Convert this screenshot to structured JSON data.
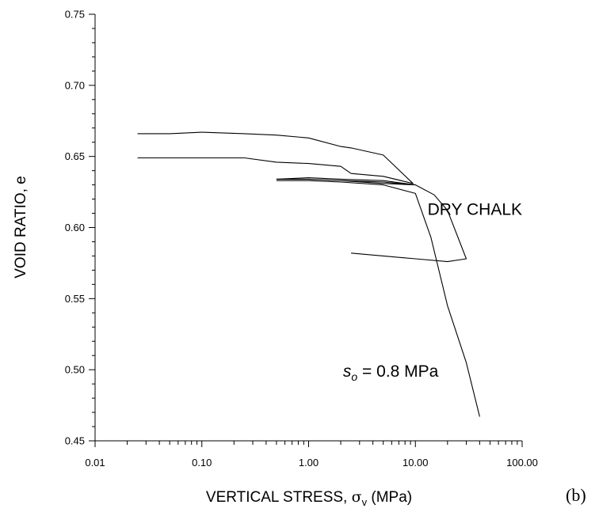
{
  "chart_data": {
    "type": "line",
    "xlabel_main": "VERTICAL STRESS, ",
    "xlabel_sym": "σ",
    "xlabel_sub": "v",
    "xlabel_unit": " (MPa)",
    "ylabel": "VOID RATIO, e",
    "xscale": "log",
    "xlim": [
      0.01,
      100
    ],
    "ylim": [
      0.45,
      0.75
    ],
    "x_ticks": [
      {
        "value": 0.01,
        "label": "0.01"
      },
      {
        "value": 0.1,
        "label": "0.10"
      },
      {
        "value": 1,
        "label": "1.00"
      },
      {
        "value": 10,
        "label": "10.00"
      },
      {
        "value": 100,
        "label": "100.00"
      }
    ],
    "y_ticks": [
      {
        "value": 0.45,
        "label": "0.45"
      },
      {
        "value": 0.5,
        "label": "0.50"
      },
      {
        "value": 0.55,
        "label": "0.55"
      },
      {
        "value": 0.6,
        "label": "0.60"
      },
      {
        "value": 0.65,
        "label": "0.65"
      },
      {
        "value": 0.7,
        "label": "0.70"
      },
      {
        "value": 0.75,
        "label": "0.75"
      }
    ],
    "y_minor_step": 0.01,
    "grid": false,
    "series": [
      {
        "points": [
          [
            0.025,
            0.666
          ],
          [
            0.05,
            0.666
          ],
          [
            0.1,
            0.667
          ],
          [
            0.25,
            0.666
          ],
          [
            0.5,
            0.665
          ],
          [
            1.0,
            0.663
          ],
          [
            2.0,
            0.657
          ],
          [
            2.5,
            0.656
          ],
          [
            5.0,
            0.651
          ],
          [
            9.5,
            0.631
          ],
          [
            5.0,
            0.636
          ],
          [
            2.5,
            0.638
          ],
          [
            2.0,
            0.643
          ],
          [
            1.0,
            0.645
          ],
          [
            0.5,
            0.646
          ],
          [
            0.25,
            0.649
          ],
          [
            0.1,
            0.649
          ],
          [
            0.05,
            0.649
          ],
          [
            0.025,
            0.649
          ]
        ]
      },
      {
        "points": [
          [
            0.5,
            0.634
          ],
          [
            1.0,
            0.634
          ],
          [
            2.0,
            0.633
          ],
          [
            5.0,
            0.632
          ],
          [
            9.8,
            0.63
          ],
          [
            5.0,
            0.631
          ],
          [
            2.0,
            0.633
          ],
          [
            1.0,
            0.634
          ],
          [
            0.5,
            0.634
          ]
        ]
      },
      {
        "points": [
          [
            0.5,
            0.634
          ],
          [
            1.0,
            0.635
          ],
          [
            2.0,
            0.634
          ],
          [
            5.0,
            0.633
          ],
          [
            10.0,
            0.63
          ],
          [
            15.0,
            0.623
          ],
          [
            20.0,
            0.612
          ],
          [
            30.0,
            0.578
          ],
          [
            20.0,
            0.576
          ],
          [
            10.0,
            0.578
          ],
          [
            5.0,
            0.58
          ],
          [
            2.5,
            0.582
          ]
        ]
      },
      {
        "points": [
          [
            0.5,
            0.633
          ],
          [
            1.0,
            0.633
          ],
          [
            2.0,
            0.632
          ],
          [
            5.0,
            0.63
          ],
          [
            10.0,
            0.624
          ],
          [
            14.0,
            0.593
          ],
          [
            20.0,
            0.545
          ],
          [
            30.0,
            0.505
          ],
          [
            40.0,
            0.467
          ]
        ]
      }
    ],
    "annotations": [
      {
        "text": "DRY CHALK",
        "x": 13.0,
        "y": 0.609
      },
      {
        "so_italic": "s",
        "so_sub": "o",
        "rest": " = 0.8 MPa",
        "x": 2.1,
        "y": 0.495
      }
    ],
    "panel_label": "(b)"
  }
}
